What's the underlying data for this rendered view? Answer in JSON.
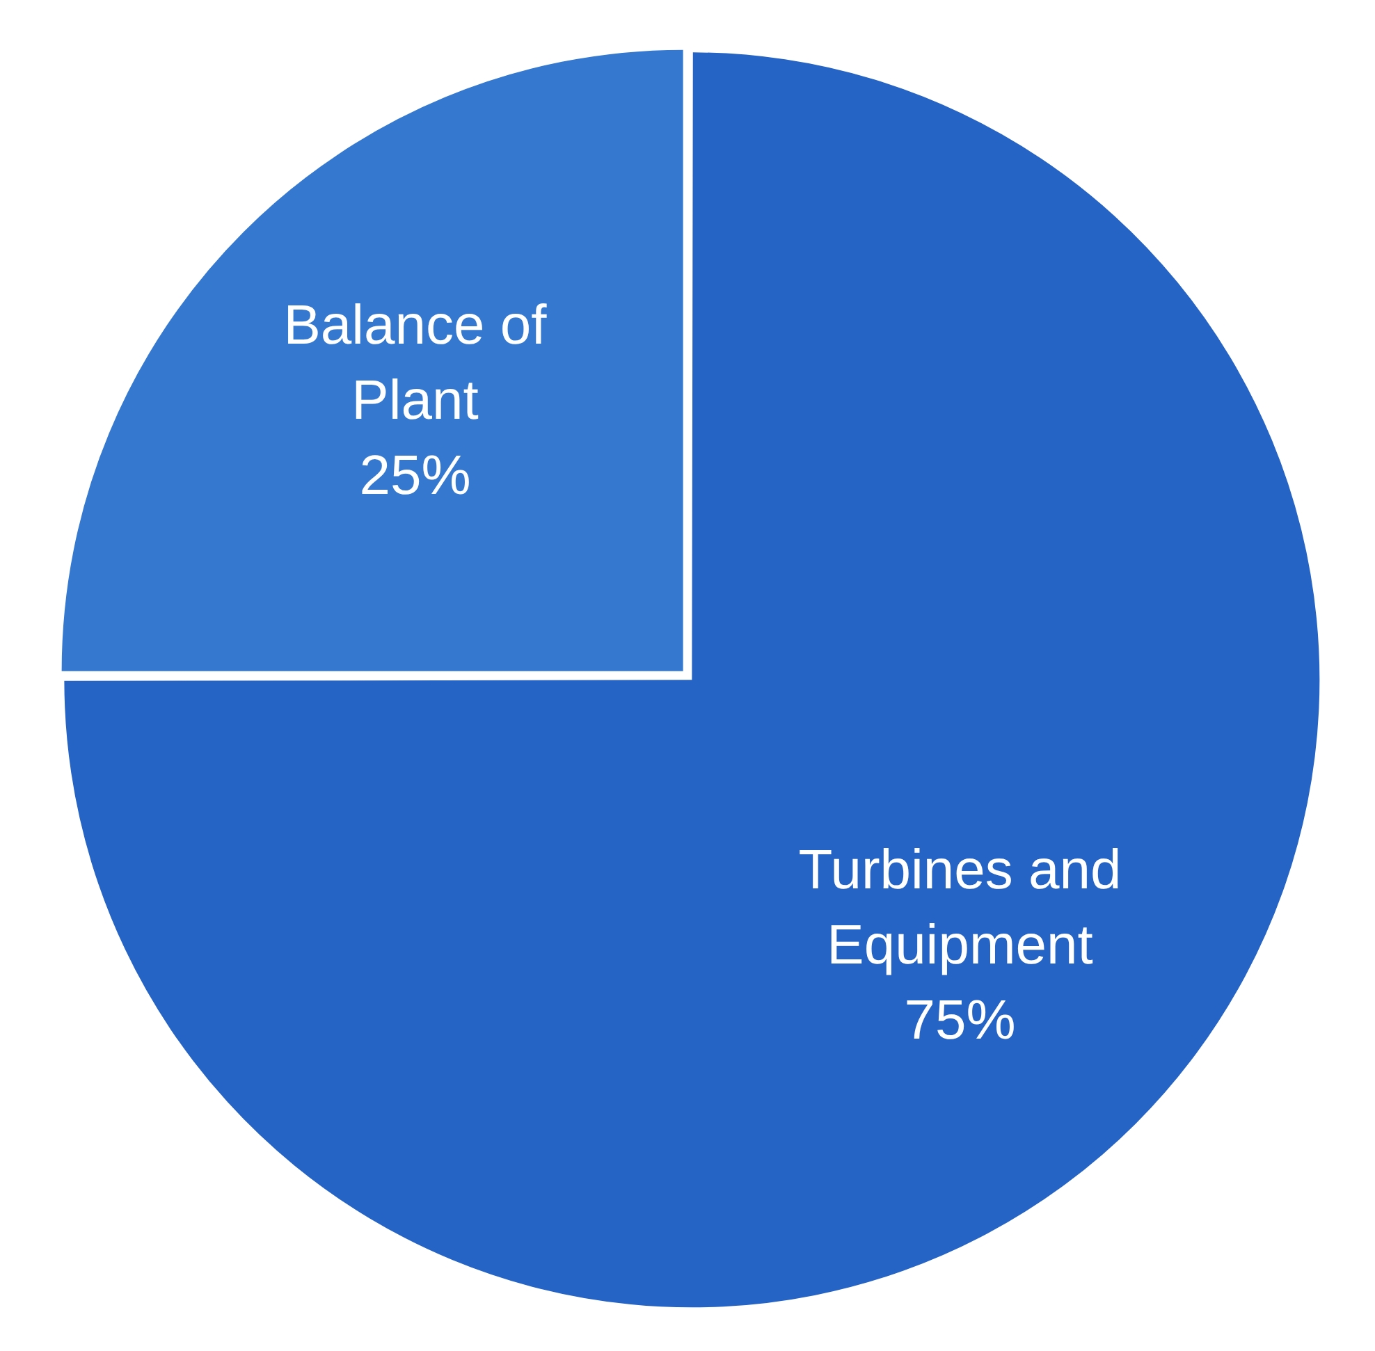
{
  "chart_data": {
    "type": "pie",
    "categories": [
      "Turbines and Equipment",
      "Balance of Plant"
    ],
    "values": [
      75,
      25
    ],
    "colors": [
      "#2563c4",
      "#3478d0"
    ],
    "value_labels": [
      "75%",
      "25%"
    ]
  }
}
